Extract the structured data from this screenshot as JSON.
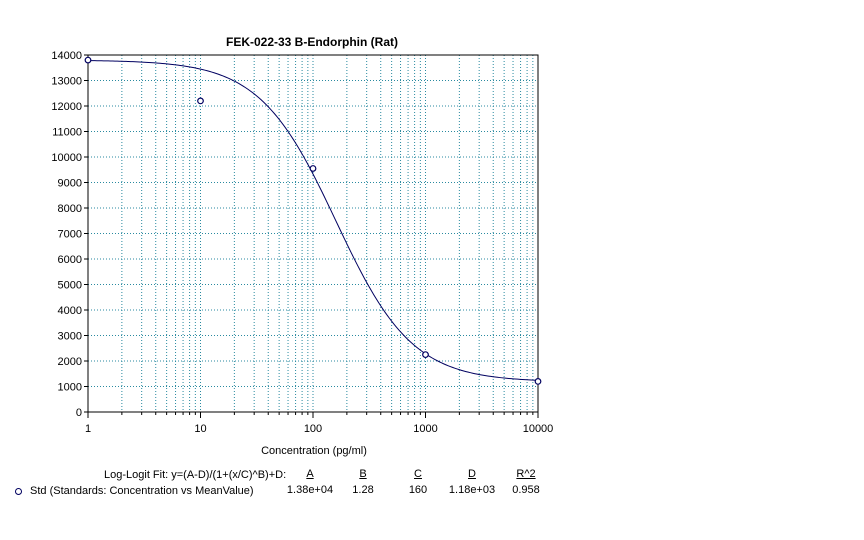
{
  "chart_data": {
    "type": "scatter",
    "title": "FEK-022-33 B-Endorphin (Rat)",
    "xlabel": "Concentration (pg/ml)",
    "ylabel": "",
    "x_scale": "log",
    "xlim": [
      1,
      10000
    ],
    "ylim": [
      0,
      14000
    ],
    "x_ticks": [
      "1",
      "10",
      "100",
      "1000",
      "10000"
    ],
    "y_ticks": [
      "0",
      "1000",
      "2000",
      "3000",
      "4000",
      "5000",
      "6000",
      "7000",
      "8000",
      "9000",
      "10000",
      "11000",
      "12000",
      "13000",
      "14000"
    ],
    "grid": true,
    "points": {
      "x": [
        1,
        10,
        100,
        1000,
        10000
      ],
      "y": [
        13800,
        12200,
        9550,
        2250,
        1200
      ]
    },
    "fit": {
      "A": 13800,
      "B": 1.28,
      "C": 160,
      "D": 1180
    },
    "colors": {
      "curve": "#000060",
      "grid": "#2a8aa0",
      "marker": "#000060"
    }
  },
  "fit_table": {
    "formula_label": "Log-Logit Fit: y=(A-D)/(1+(x/C)^B)+D:",
    "headers": [
      "A",
      "B",
      "C",
      "D",
      "R^2"
    ],
    "series_name": "Std (Standards: Concentration vs MeanValue)",
    "values": [
      "1.38e+04",
      "1.28",
      "160",
      "1.18e+03",
      "0.958"
    ]
  }
}
